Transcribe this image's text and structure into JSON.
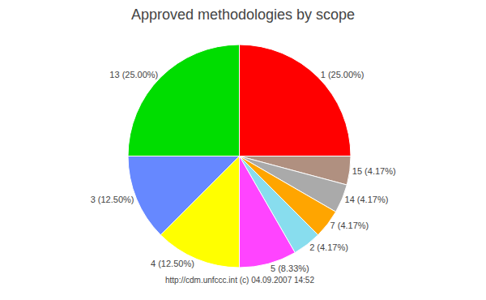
{
  "chart_data": {
    "type": "pie",
    "title": "Approved methodologies by scope",
    "footer": "http://cdm.unfccc.int (c) 04.09.2007 14:52",
    "categories": [
      "1 (25.00%)",
      "15 (4.17%)",
      "14 (4.17%)",
      "7 (4.17%)",
      "2 (4.17%)",
      "5 (8.33%)",
      "4 (12.50%)",
      "3 (12.50%)",
      "13 (25.00%)"
    ],
    "values": [
      25.0,
      4.17,
      4.17,
      4.17,
      4.17,
      8.33,
      12.5,
      12.5,
      25.0
    ],
    "colors": [
      "#FF0000",
      "#B09080",
      "#AAAAAA",
      "#FFA500",
      "#88DDEE",
      "#FF44FF",
      "#FFFF00",
      "#6688FF",
      "#00DD00"
    ]
  }
}
